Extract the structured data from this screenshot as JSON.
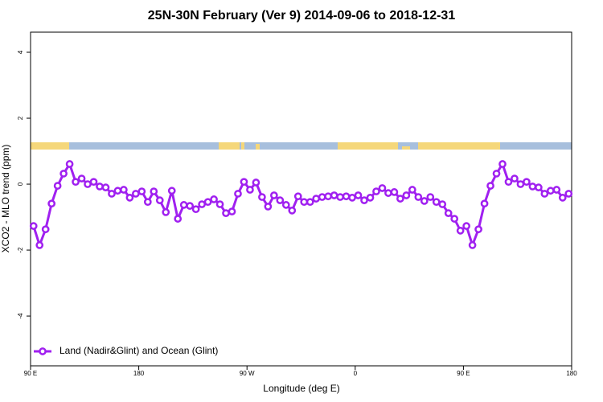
{
  "chart_data": {
    "type": "line",
    "title": "25N-30N February (Ver 9)   2014-09-06 to 2018-12-31",
    "x_label": "Longitude (deg E)",
    "y_label": "XCO2 - MLO trend (ppm)",
    "xlim": [
      90,
      540
    ],
    "ylim": [
      -5.51,
      4.61
    ],
    "xticks": [
      {
        "value": 90,
        "label": "90 E"
      },
      180,
      {
        "value": 270,
        "label": "90 W"
      },
      {
        "value": 360,
        "label": "0"
      },
      {
        "value": 450,
        "label": "90 E"
      },
      {
        "value": 540,
        "label": "180"
      }
    ],
    "yticks": [
      -4,
      -2,
      0,
      2,
      4
    ],
    "legend": "bottom-left",
    "grid": false,
    "x": [
      92.5,
      97.5,
      102.5,
      107.5,
      112.5,
      117.5,
      122.5,
      127.5,
      132.5,
      137.5,
      142.5,
      147.5,
      152.5,
      157.5,
      162.5,
      167.5,
      172.5,
      177.5,
      182.5,
      187.5,
      192.5,
      197.5,
      202.5,
      207.5,
      212.5,
      217.5,
      222.5,
      227.5,
      232.5,
      237.5,
      242.5,
      247.5,
      252.5,
      257.5,
      262.5,
      267.5,
      272.5,
      277.5,
      282.5,
      287.5,
      292.5,
      297.5,
      302.5,
      307.5,
      312.5,
      317.5,
      322.5,
      327.5,
      332.5,
      337.5,
      342.5,
      347.5,
      352.5,
      357.5,
      362.5,
      367.5,
      372.5,
      377.5,
      382.5,
      387.5,
      392.5,
      397.5,
      402.5,
      407.5,
      412.5,
      417.5,
      422.5,
      427.5,
      432.5,
      437.5,
      442.5,
      447.5,
      452.5,
      457.5,
      462.5,
      467.5,
      472.5,
      477.5,
      482.5,
      487.5,
      492.5,
      497.5,
      502.5,
      507.5,
      512.5,
      517.5,
      522.5,
      527.5,
      532.5,
      537.5
    ],
    "series": [
      {
        "name": "Land (Nadir&Glint) and Ocean (Glint)",
        "color": "#a020f0",
        "values": [
          -1.27,
          -1.85,
          -1.37,
          -0.59,
          -0.05,
          0.32,
          0.61,
          0.07,
          0.17,
          0.0,
          0.07,
          -0.07,
          -0.1,
          -0.29,
          -0.2,
          -0.17,
          -0.41,
          -0.29,
          -0.22,
          -0.54,
          -0.22,
          -0.49,
          -0.85,
          -0.2,
          -1.05,
          -0.63,
          -0.66,
          -0.76,
          -0.61,
          -0.54,
          -0.46,
          -0.61,
          -0.88,
          -0.83,
          -0.29,
          0.07,
          -0.17,
          0.05,
          -0.39,
          -0.68,
          -0.34,
          -0.49,
          -0.63,
          -0.8,
          -0.37,
          -0.54,
          -0.54,
          -0.44,
          -0.39,
          -0.37,
          -0.34,
          -0.39,
          -0.37,
          -0.41,
          -0.34,
          -0.49,
          -0.41,
          -0.22,
          -0.12,
          -0.27,
          -0.24,
          -0.44,
          -0.34,
          -0.17,
          -0.39,
          -0.51,
          -0.39,
          -0.54,
          -0.61,
          -0.88,
          -1.05,
          -1.41,
          -1.27,
          -1.85,
          -1.37,
          -0.59,
          -0.05,
          0.32,
          0.61,
          0.07,
          0.17,
          0.0,
          0.07,
          -0.07,
          -0.1,
          -0.29,
          -0.2,
          -0.17,
          -0.41,
          -0.29
        ]
      }
    ]
  }
}
